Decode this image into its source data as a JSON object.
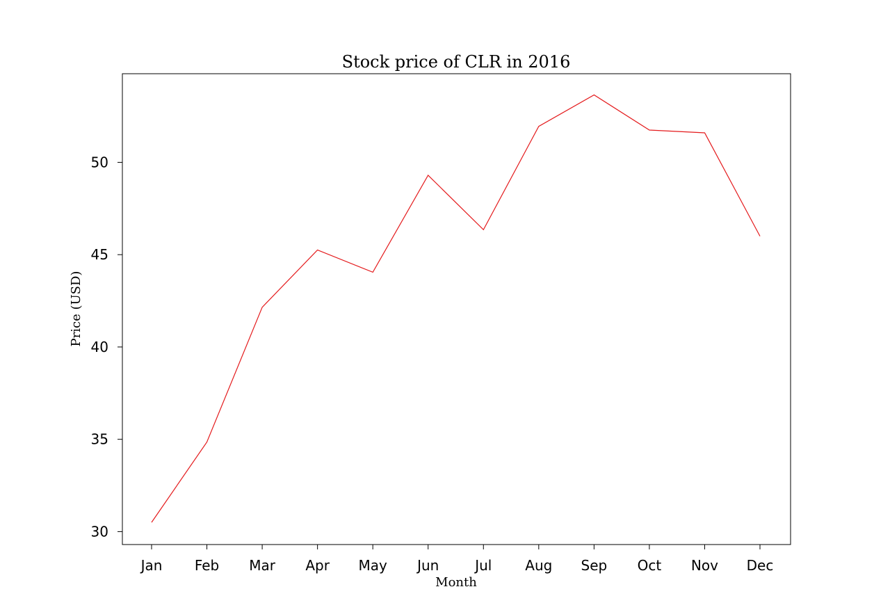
{
  "chart_data": {
    "type": "line",
    "title": "Stock price of CLR in 2016",
    "xlabel": "Month",
    "ylabel": "Price (USD)",
    "categories": [
      "Jan",
      "Feb",
      "Mar",
      "Apr",
      "May",
      "Jun",
      "Jul",
      "Aug",
      "Sep",
      "Oct",
      "Nov",
      "Dec"
    ],
    "series": [
      {
        "values": [
          30.5,
          34.85,
          42.15,
          45.25,
          44.05,
          49.3,
          46.35,
          51.95,
          53.65,
          51.75,
          51.6,
          46.0
        ],
        "color": "#e41a1c"
      }
    ],
    "ylim": [
      29.3,
      54.8
    ],
    "yticks": [
      30,
      35,
      40,
      45,
      50
    ],
    "grid": false,
    "legend": "none"
  }
}
